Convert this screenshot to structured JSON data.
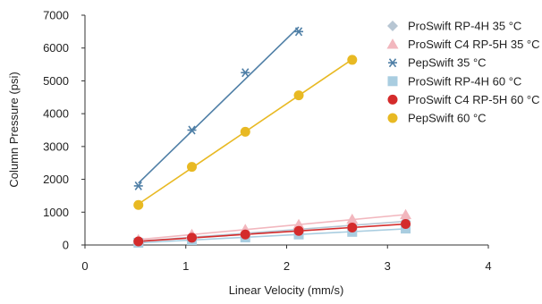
{
  "chart_data": {
    "type": "scatter",
    "title": "",
    "xlabel": "Linear Velocity (mm/s)",
    "ylabel": "Column Pressure (psi)",
    "xlim": [
      0,
      4
    ],
    "ylim": [
      0,
      7000
    ],
    "xticks": [
      0,
      1,
      2,
      3,
      4
    ],
    "yticks": [
      0,
      1000,
      2000,
      3000,
      4000,
      5000,
      6000,
      7000
    ],
    "grid": false,
    "legend_position": "top-right",
    "series": [
      {
        "name": "ProSwift RP-4H 35 °C",
        "marker": "diamond",
        "color": "#b7c6d3",
        "trendline": true,
        "x": [
          0.53,
          1.06,
          1.59,
          2.12,
          2.65,
          3.18
        ],
        "y": [
          120,
          230,
          350,
          480,
          600,
          720
        ]
      },
      {
        "name": "ProSwift C4 RP-5H 35 °C",
        "marker": "triangle",
        "color": "#f2b7be",
        "trendline": true,
        "x": [
          0.53,
          1.06,
          1.59,
          2.12,
          2.65,
          3.18
        ],
        "y": [
          160,
          320,
          470,
          620,
          780,
          920
        ]
      },
      {
        "name": "PepSwift 35 °C",
        "marker": "star",
        "color": "#4f7fa6",
        "trendline": true,
        "x": [
          0.53,
          1.06,
          1.59,
          2.12
        ],
        "y": [
          1800,
          3500,
          5250,
          6500
        ]
      },
      {
        "name": "ProSwift RP-4H 60 °C",
        "marker": "square",
        "color": "#a9cde0",
        "trendline": true,
        "x": [
          0.53,
          1.06,
          1.59,
          2.12,
          2.65,
          3.18
        ],
        "y": [
          70,
          150,
          230,
          320,
          400,
          500
        ]
      },
      {
        "name": "ProSwift C4 RP-5H 60 °C",
        "marker": "circle",
        "color": "#d42b2b",
        "trendline": true,
        "x": [
          0.53,
          1.06,
          1.59,
          2.12,
          2.65,
          3.18
        ],
        "y": [
          110,
          220,
          320,
          430,
          530,
          640
        ]
      },
      {
        "name": "PepSwift 60 °C",
        "marker": "circle",
        "color": "#e8b923",
        "trendline": true,
        "x": [
          0.53,
          1.06,
          1.59,
          2.12,
          2.65
        ],
        "y": [
          1220,
          2380,
          3450,
          4560,
          5640
        ]
      }
    ]
  }
}
